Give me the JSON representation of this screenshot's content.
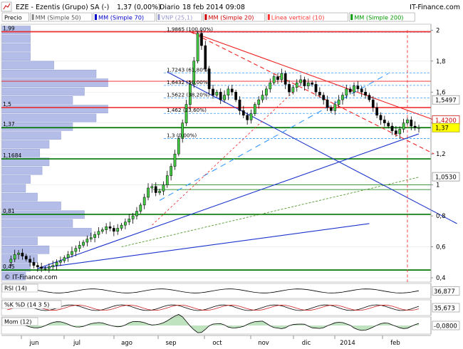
{
  "header": {
    "symbol": "EZE - Ezentis (Grupo) SA (-)",
    "last": "1,37 (0,00%)",
    "period": "Diario",
    "datetime": "18 feb 2014 09:08",
    "brand": "IT-Finance.com"
  },
  "legend": {
    "items": [
      {
        "label": "Precio",
        "color": "#000000",
        "swatch": false
      },
      {
        "label": "MM (Simple 50)",
        "color": "#888888",
        "swatch": true
      },
      {
        "label": "MM (Simple 70)",
        "color": "#0000cc",
        "swatch": true
      },
      {
        "label": "VNP (25,1)",
        "color": "#9999cc",
        "swatch": true
      },
      {
        "label": "MM (Simple 20)",
        "color": "#cc0000",
        "swatch": true
      },
      {
        "label": "Línea vertical (10)",
        "color": "#ff3333",
        "swatch": true
      },
      {
        "label": "MM (Simple 200)",
        "color": "#009900",
        "swatch": true
      }
    ]
  },
  "watermark": "© IT-Finance.com",
  "colors": {
    "up": "#00cc00",
    "down": "#000000",
    "bull_candle": "#44cc44",
    "resistance": "#ee2222",
    "support": "#007700",
    "fib": "#3399ff",
    "trend_blue": "#1a33cc",
    "volume_profile": "#9aa7e0",
    "price_tag": "#ffff00",
    "rsi": "#000000",
    "stoch_k": "#000000",
    "stoch_d": "#cc2222",
    "momentum_fill": "#88cc88"
  },
  "chart_data": {
    "type": "candlestick",
    "title": "EZE - Ezentis (Grupo) SA (-)",
    "x_month_labels": [
      "jun",
      "jul",
      "ago",
      "sep",
      "oct",
      "nov",
      "dic",
      "2014",
      "feb"
    ],
    "y_ticks": [
      "0,4",
      "0,6",
      "0,8",
      "1",
      "1,2",
      "1,4",
      "1,6",
      "1,8",
      "2"
    ],
    "ylim": [
      0.4,
      2.02
    ],
    "scale": "linear",
    "last_price": "1,37",
    "right_tags": [
      {
        "label": "1,5497",
        "value": 1.5497,
        "style": "white"
      },
      {
        "label": "1,4200",
        "value": 1.42,
        "style": "white-red"
      },
      {
        "label": "1,37",
        "value": 1.37,
        "style": "yellow"
      },
      {
        "label": "1,0530",
        "value": 1.053,
        "style": "white"
      }
    ],
    "fibonacci": {
      "high": "1,9865 (100,00%)",
      "low": "1,3 (0,00%)",
      "levels": [
        {
          "label": "1,9865 (100,00%)",
          "value": 1.9865
        },
        {
          "label": "1,7243 (61,80%)",
          "value": 1.7243
        },
        {
          "label": "1,6432 (50,00%)",
          "value": 1.6432
        },
        {
          "label": "1,5622 (38,20%)",
          "value": 1.5622
        },
        {
          "label": "1,462 (23,60%)",
          "value": 1.462
        },
        {
          "label": "1,3 (0,00%)",
          "value": 1.3
        }
      ]
    },
    "volume_profile_labels": [
      {
        "label": "1,99",
        "value": 1.99
      },
      {
        "label": "1,5",
        "value": 1.5
      },
      {
        "label": "1,37",
        "value": 1.37
      },
      {
        "label": "1,1684",
        "value": 1.1684
      },
      {
        "label": "0,81",
        "value": 0.81
      },
      {
        "label": "0,45",
        "value": 0.45
      }
    ],
    "volume_profile": [
      0.12,
      0.12,
      0.12,
      0.12,
      0.22,
      0.4,
      0.45,
      0.35,
      0.3,
      0.45,
      0.4,
      0.3,
      0.25,
      0.2,
      0.16,
      0.2,
      0.17,
      0.12,
      0.1,
      0.15,
      0.25,
      0.35,
      0.3,
      0.38,
      0.15,
      0.2,
      0.15,
      0.12,
      0.1
    ],
    "horizontal_levels": {
      "red": [
        1.99,
        1.5,
        1.67
      ],
      "green": [
        1.37,
        1.1684,
        0.81,
        0.45,
        1.0,
        0.97
      ]
    },
    "price_series": [
      0.5,
      0.52,
      0.55,
      0.56,
      0.54,
      0.52,
      0.5,
      0.48,
      0.47,
      0.46,
      0.46,
      0.47,
      0.48,
      0.5,
      0.51,
      0.53,
      0.55,
      0.57,
      0.59,
      0.61,
      0.63,
      0.65,
      0.66,
      0.68,
      0.7,
      0.71,
      0.73,
      0.72,
      0.7,
      0.72,
      0.74,
      0.76,
      0.78,
      0.8,
      0.83,
      0.87,
      0.92,
      0.98,
      0.99,
      0.95,
      0.96,
      1.0,
      1.06,
      1.12,
      1.2,
      1.3,
      1.4,
      1.52,
      1.65,
      1.8,
      1.98,
      1.9,
      1.75,
      1.62,
      1.58,
      1.6,
      1.55,
      1.58,
      1.62,
      1.6,
      1.55,
      1.48,
      1.45,
      1.42,
      1.46,
      1.52,
      1.55,
      1.58,
      1.62,
      1.66,
      1.7,
      1.68,
      1.72,
      1.65,
      1.6,
      1.63,
      1.66,
      1.68,
      1.64,
      1.66,
      1.65,
      1.6,
      1.58,
      1.55,
      1.5,
      1.48,
      1.52,
      1.55,
      1.58,
      1.62,
      1.6,
      1.64,
      1.62,
      1.6,
      1.58,
      1.55,
      1.5,
      1.45,
      1.42,
      1.4,
      1.38,
      1.35,
      1.33,
      1.36,
      1.4,
      1.42,
      1.38,
      1.37,
      1.37
    ],
    "indicators": [
      {
        "name": "RSI (14)",
        "value": "36,877"
      },
      {
        "name": "%K %D (14 3 5)",
        "value": "35,673"
      },
      {
        "name": "Mom (12)",
        "value": "-0,0800"
      }
    ]
  }
}
